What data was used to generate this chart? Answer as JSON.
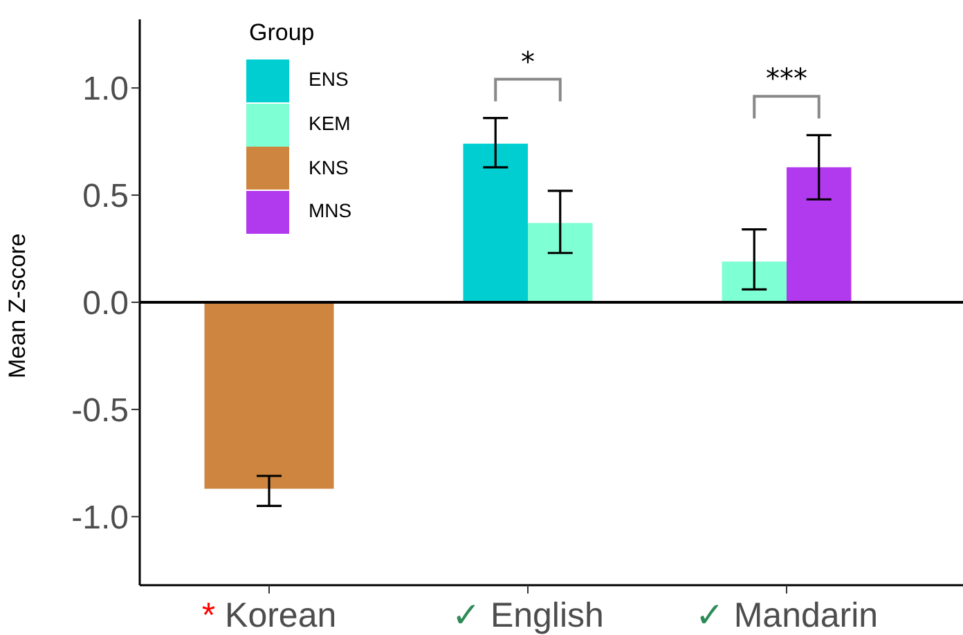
{
  "chart_data": {
    "type": "bar",
    "ylabel": "Mean Z-score",
    "legend_title": "Group",
    "categories": [
      "* Korean",
      "✓ English",
      "✓ Mandarin"
    ],
    "series": [
      {
        "name": "ENS",
        "color": "#00ced1",
        "values": [
          null,
          0.74,
          null
        ],
        "errors": [
          null,
          [
            0.63,
            0.86
          ],
          null
        ]
      },
      {
        "name": "KEM",
        "color": "#7fffd4",
        "values": [
          null,
          0.37,
          0.19
        ],
        "errors": [
          null,
          [
            0.23,
            0.52
          ],
          [
            0.06,
            0.34
          ]
        ]
      },
      {
        "name": "KNS",
        "color": "#cd853f",
        "values": [
          -0.87,
          null,
          null
        ],
        "errors": [
          [
            -0.95,
            -0.81
          ],
          null,
          null
        ]
      },
      {
        "name": "MNS",
        "color": "#b23aee",
        "values": [
          null,
          null,
          0.63
        ],
        "errors": [
          null,
          null,
          [
            0.48,
            0.78
          ]
        ]
      }
    ],
    "ylim": [
      -1.32,
      1.32
    ],
    "yticks": [
      {
        "value": -1,
        "label": "-1.0"
      },
      {
        "value": -0.5,
        "label": "-0.5"
      },
      {
        "value": 0,
        "label": "0.0"
      },
      {
        "value": 0.5,
        "label": "0.5"
      },
      {
        "value": 1,
        "label": "1.0"
      }
    ],
    "ref_lines": [
      {
        "axis": "y",
        "value": 0,
        "color": "#000000"
      }
    ],
    "annotations": [
      "*",
      "***"
    ],
    "grid": false,
    "legend": "top left"
  }
}
